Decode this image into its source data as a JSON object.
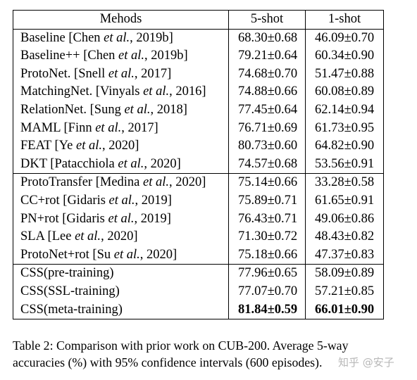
{
  "table": {
    "headers": [
      "Mehods",
      "5-shot",
      "1-shot"
    ],
    "groups": [
      [
        {
          "method": [
            "Baseline [Chen ",
            "et al.",
            ", 2019b]"
          ],
          "five": "68.30±0.68",
          "one": "46.09±0.70"
        },
        {
          "method": [
            "Baseline++ [Chen ",
            "et al.",
            ", 2019b]"
          ],
          "five": "79.21±0.64",
          "one": "60.34±0.90"
        },
        {
          "method": [
            "ProtoNet. [Snell ",
            "et al.",
            ", 2017]"
          ],
          "five": "74.68±0.70",
          "one": "51.47±0.88"
        },
        {
          "method": [
            "MatchingNet. [Vinyals ",
            "et al.",
            ", 2016]"
          ],
          "five": "74.88±0.66",
          "one": "60.08±0.89"
        },
        {
          "method": [
            "RelationNet. [Sung ",
            "et al.",
            ", 2018]"
          ],
          "five": "77.45±0.64",
          "one": "62.14±0.94"
        },
        {
          "method": [
            "MAML [Finn ",
            "et al.",
            ", 2017]"
          ],
          "five": "76.71±0.69",
          "one": "61.73±0.95"
        },
        {
          "method": [
            "FEAT [Ye ",
            "et al.",
            ", 2020]"
          ],
          "five": "80.73±0.60",
          "one": "64.82±0.90"
        },
        {
          "method": [
            "DKT [Patacchiola ",
            "et al.",
            ", 2020]"
          ],
          "five": "74.57±0.68",
          "one": "53.56±0.91"
        }
      ],
      [
        {
          "method": [
            "ProtoTransfer [Medina ",
            "et al.",
            ", 2020]"
          ],
          "five": "75.14±0.66",
          "one": "33.28±0.58"
        },
        {
          "method": [
            "CC+rot [Gidaris ",
            "et al.",
            ", 2019]"
          ],
          "five": "75.89±0.71",
          "one": "61.65±0.91"
        },
        {
          "method": [
            "PN+rot [Gidaris ",
            "et al.",
            ", 2019]"
          ],
          "five": "76.43±0.71",
          "one": "49.06±0.86"
        },
        {
          "method": [
            "SLA [Lee ",
            "et al.",
            ", 2020]"
          ],
          "five": "71.30±0.72",
          "one": "48.43±0.82"
        },
        {
          "method": [
            "ProtoNet+rot [Su ",
            "et al.",
            ", 2020]"
          ],
          "five": "75.18±0.66",
          "one": "47.37±0.83"
        }
      ],
      [
        {
          "method": [
            "CSS(pre-training)",
            "",
            ""
          ],
          "five": "77.96±0.65",
          "one": "58.09±0.89"
        },
        {
          "method": [
            "CSS(SSL-training)",
            "",
            ""
          ],
          "five": "77.07±0.70",
          "one": "57.21±0.85"
        },
        {
          "method": [
            "CSS(meta-training)",
            "",
            ""
          ],
          "five": "81.84±0.59",
          "one": "66.01±0.90",
          "bold": true
        }
      ]
    ]
  },
  "caption": {
    "line1": "Table 2: Comparison with prior work on CUB-200. Average 5-way",
    "line2": "accuracies (%) with 95% confidence intervals (600 episodes)."
  },
  "watermark": "知乎 @安子"
}
